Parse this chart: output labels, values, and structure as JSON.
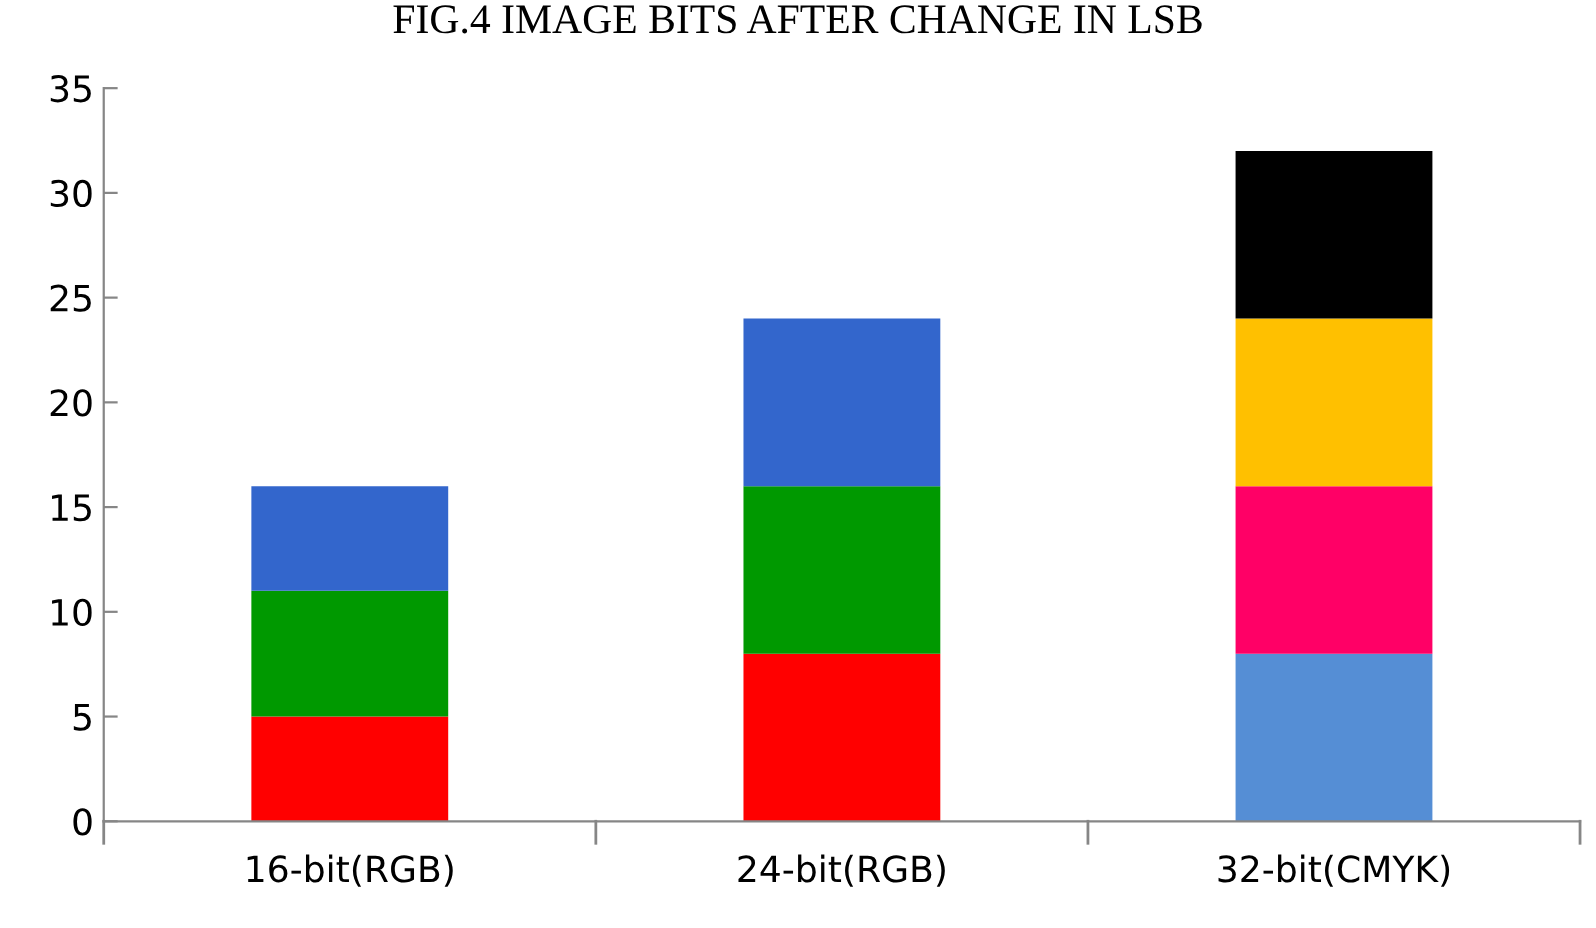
{
  "chart_data": {
    "type": "bar",
    "title": "FIG.4 IMAGE BITS AFTER CHANGE IN LSB",
    "stacked": true,
    "categories": [
      "16-bit(RGB)",
      "24-bit(RGB)",
      "32-bit(CMYK)"
    ],
    "series": [
      {
        "colors": [
          "#ff0000",
          "#ff0000",
          "#558ed5"
        ],
        "values": [
          5,
          8,
          8
        ]
      },
      {
        "colors": [
          "#009900",
          "#009900",
          "#ff0066"
        ],
        "values": [
          6,
          8,
          8
        ]
      },
      {
        "colors": [
          "#3366cc",
          "#3366cc",
          "#ffc000"
        ],
        "values": [
          5,
          8,
          8
        ]
      },
      {
        "colors": [
          "#000000",
          "#000000",
          "#000000"
        ],
        "values": [
          null,
          null,
          8
        ]
      }
    ],
    "ylim": [
      0,
      35
    ],
    "yticks": [
      0,
      5,
      10,
      15,
      20,
      25,
      30,
      35
    ],
    "grid": false,
    "legend": false
  }
}
